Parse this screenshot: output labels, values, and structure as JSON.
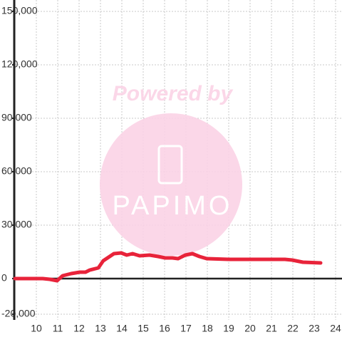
{
  "chart_data": {
    "type": "line",
    "watermark": {
      "top": "Powered by",
      "logo": "PAPIMO"
    },
    "x": [
      9,
      10.3,
      10.63,
      10.97,
      11.23,
      11.63,
      12.03,
      12.3,
      12.5,
      12.9,
      13.13,
      13.63,
      13.97,
      14.23,
      14.5,
      14.83,
      15.3,
      15.7,
      16.03,
      16.37,
      16.63,
      16.97,
      17.3,
      17.63,
      17.97,
      19,
      21.63,
      21.97,
      22.47,
      23.3
    ],
    "series": [
      {
        "color": "#e8233a",
        "values": [
          0,
          0,
          -400,
          -1200,
          1600,
          2800,
          3600,
          3600,
          4800,
          6000,
          10000,
          14000,
          14400,
          13200,
          14000,
          12800,
          13200,
          12400,
          11600,
          11600,
          11200,
          13200,
          14000,
          12400,
          11200,
          10800,
          10800,
          10400,
          9200,
          8800
        ]
      }
    ],
    "xlim": [
      9,
      24.3
    ],
    "xticks": [
      10,
      11,
      12,
      13,
      14,
      15,
      16,
      17,
      18,
      19,
      20,
      21,
      22,
      23,
      24
    ],
    "ylim": [
      -20000,
      150000
    ],
    "yticks": [
      {
        "value": -20000,
        "label": "-20,000"
      },
      0,
      {
        "value": 30000,
        "label": "30,000"
      },
      {
        "value": 60000,
        "label": "60,000"
      },
      {
        "value": 90000,
        "label": "90,000"
      },
      {
        "value": 120000,
        "label": "120,000"
      },
      {
        "value": 150000,
        "label": "150,000"
      }
    ],
    "grid": true
  }
}
